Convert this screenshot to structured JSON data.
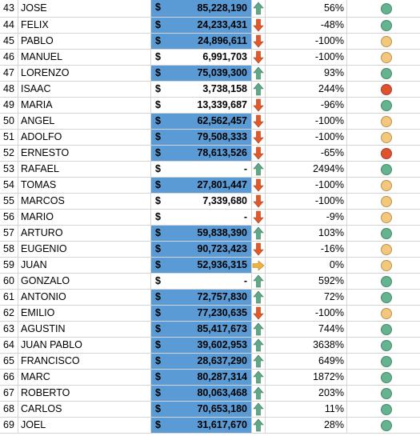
{
  "currency_symbol": "$",
  "colors": {
    "highlight": "#5b9bd5",
    "up_arrow": "#5fa987",
    "down_arrow": "#e05a2b",
    "flat_arrow": "#f1b13b",
    "green": "#63b48f",
    "yellow": "#f4c77a",
    "red": "#e0522e"
  },
  "rows": [
    {
      "num": "43",
      "name": "JOSE",
      "amount": "85,228,190",
      "highlight": true,
      "arrow": "up",
      "pct": "56%",
      "status": "green"
    },
    {
      "num": "44",
      "name": "FELIX",
      "amount": "24,233,431",
      "highlight": true,
      "arrow": "down",
      "pct": "-48%",
      "status": "green"
    },
    {
      "num": "45",
      "name": "PABLO",
      "amount": "24,896,611",
      "highlight": true,
      "arrow": "down",
      "pct": "-100%",
      "status": "yellow"
    },
    {
      "num": "46",
      "name": "MANUEL",
      "amount": "6,991,703",
      "highlight": false,
      "arrow": "down",
      "pct": "-100%",
      "status": "yellow"
    },
    {
      "num": "47",
      "name": "LORENZO",
      "amount": "75,039,300",
      "highlight": true,
      "arrow": "up",
      "pct": "93%",
      "status": "green"
    },
    {
      "num": "48",
      "name": "ISAAC",
      "amount": "3,738,158",
      "highlight": false,
      "arrow": "up",
      "pct": "244%",
      "status": "red"
    },
    {
      "num": "49",
      "name": "MARIA",
      "amount": "13,339,687",
      "highlight": false,
      "arrow": "down",
      "pct": "-96%",
      "status": "green"
    },
    {
      "num": "50",
      "name": "ANGEL",
      "amount": "62,562,457",
      "highlight": true,
      "arrow": "down",
      "pct": "-100%",
      "status": "yellow"
    },
    {
      "num": "51",
      "name": "ADOLFO",
      "amount": "79,508,333",
      "highlight": true,
      "arrow": "down",
      "pct": "-100%",
      "status": "yellow"
    },
    {
      "num": "52",
      "name": "ERNESTO",
      "amount": "78,613,526",
      "highlight": true,
      "arrow": "down",
      "pct": "-65%",
      "status": "red"
    },
    {
      "num": "53",
      "name": "RAFAEL",
      "amount": "-",
      "highlight": false,
      "arrow": "up",
      "pct": "2494%",
      "status": "green"
    },
    {
      "num": "54",
      "name": "TOMAS",
      "amount": "27,801,447",
      "highlight": true,
      "arrow": "down",
      "pct": "-100%",
      "status": "yellow"
    },
    {
      "num": "55",
      "name": "MARCOS",
      "amount": "7,339,680",
      "highlight": false,
      "arrow": "down",
      "pct": "-100%",
      "status": "yellow"
    },
    {
      "num": "56",
      "name": "MARIO",
      "amount": "-",
      "highlight": false,
      "arrow": "down",
      "pct": "-9%",
      "status": "yellow"
    },
    {
      "num": "57",
      "name": "ARTURO",
      "amount": "59,838,390",
      "highlight": true,
      "arrow": "up",
      "pct": "103%",
      "status": "green"
    },
    {
      "num": "58",
      "name": "EUGENIO",
      "amount": "90,723,423",
      "highlight": true,
      "arrow": "down",
      "pct": "-16%",
      "status": "yellow"
    },
    {
      "num": "59",
      "name": "JUAN",
      "amount": "52,936,315",
      "highlight": true,
      "arrow": "flat",
      "pct": "0%",
      "status": "yellow"
    },
    {
      "num": "60",
      "name": "GONZALO",
      "amount": "-",
      "highlight": false,
      "arrow": "up",
      "pct": "592%",
      "status": "green"
    },
    {
      "num": "61",
      "name": "ANTONIO",
      "amount": "72,757,830",
      "highlight": true,
      "arrow": "up",
      "pct": "72%",
      "status": "green"
    },
    {
      "num": "62",
      "name": "EMILIO",
      "amount": "77,230,635",
      "highlight": true,
      "arrow": "down",
      "pct": "-100%",
      "status": "yellow"
    },
    {
      "num": "63",
      "name": "AGUSTIN",
      "amount": "85,417,673",
      "highlight": true,
      "arrow": "up",
      "pct": "744%",
      "status": "green"
    },
    {
      "num": "64",
      "name": "JUAN PABLO",
      "amount": "39,602,953",
      "highlight": true,
      "arrow": "up",
      "pct": "3638%",
      "status": "green"
    },
    {
      "num": "65",
      "name": "FRANCISCO",
      "amount": "28,637,290",
      "highlight": true,
      "arrow": "up",
      "pct": "649%",
      "status": "green"
    },
    {
      "num": "66",
      "name": "MARC",
      "amount": "80,287,314",
      "highlight": true,
      "arrow": "up",
      "pct": "1872%",
      "status": "green"
    },
    {
      "num": "67",
      "name": "ROBERTO",
      "amount": "80,063,468",
      "highlight": true,
      "arrow": "up",
      "pct": "203%",
      "status": "green"
    },
    {
      "num": "68",
      "name": "CARLOS",
      "amount": "70,653,180",
      "highlight": true,
      "arrow": "up",
      "pct": "11%",
      "status": "green"
    },
    {
      "num": "69",
      "name": "JOEL",
      "amount": "31,617,670",
      "highlight": true,
      "arrow": "up",
      "pct": "28%",
      "status": "green"
    }
  ]
}
